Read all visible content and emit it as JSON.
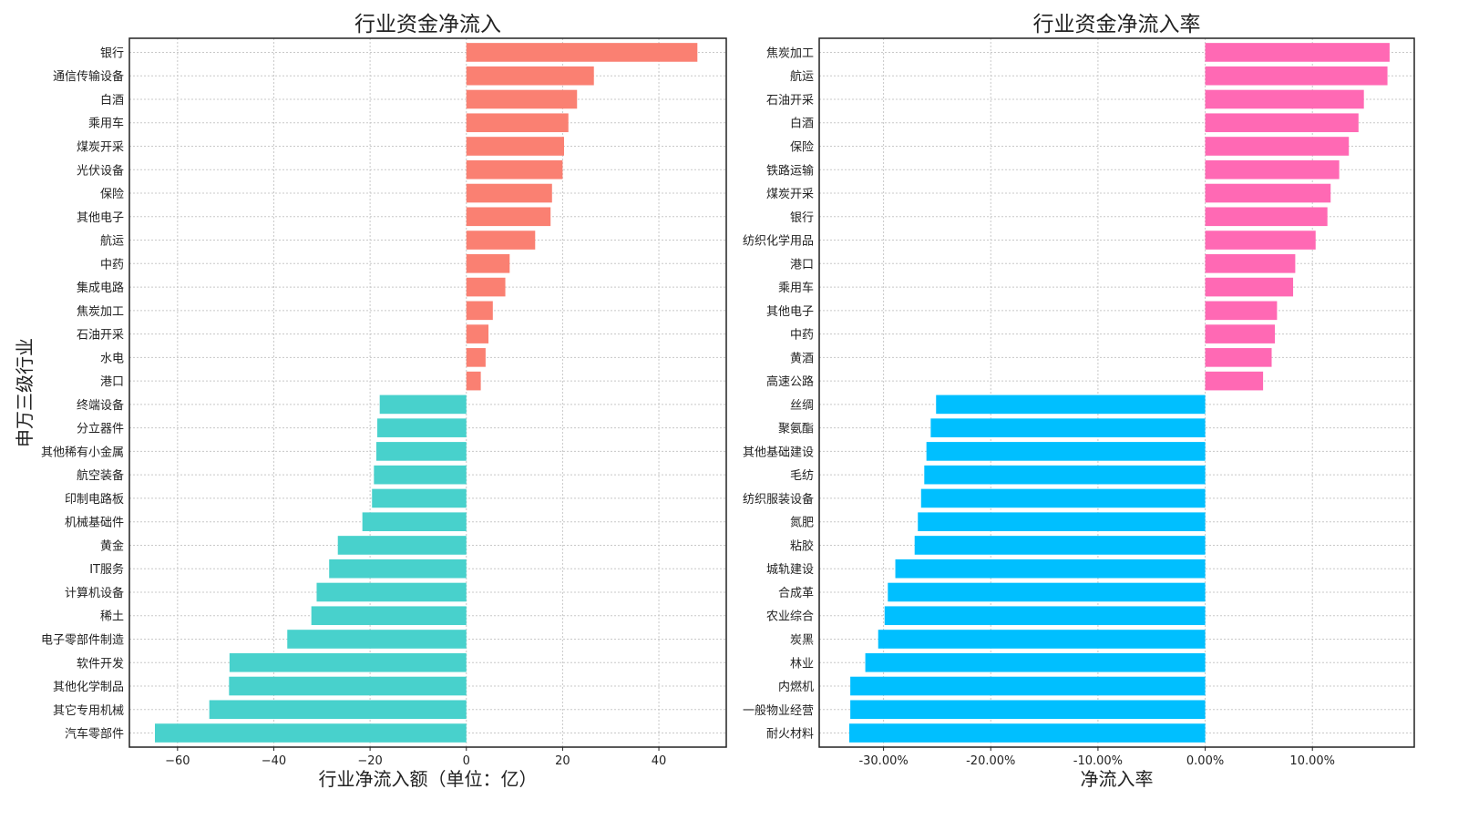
{
  "chart_data": [
    {
      "type": "bar",
      "orientation": "horizontal",
      "title": "行业资金净流入",
      "xlabel": "行业净流入额（单位：亿）",
      "ylabel": "申万三级行业",
      "xlim": [
        -70,
        54
      ],
      "xticks": [
        -60,
        -40,
        -20,
        0,
        20,
        40
      ],
      "xtick_labels": [
        "−60",
        "−40",
        "−20",
        "0",
        "20",
        "40"
      ],
      "grid": true,
      "positive_color": "#FA8072",
      "negative_color": "#48D1CC",
      "categories": [
        "银行",
        "通信传输设备",
        "白酒",
        "乘用车",
        "煤炭开采",
        "光伏设备",
        "保险",
        "其他电子",
        "航运",
        "中药",
        "集成电路",
        "焦炭加工",
        "石油开采",
        "水电",
        "港口",
        "终端设备",
        "分立器件",
        "其他稀有小金属",
        "航空装备",
        "印制电路板",
        "机械基础件",
        "黄金",
        "IT服务",
        "计算机设备",
        "稀土",
        "电子零部件制造",
        "软件开发",
        "其他化学制品",
        "其它专用机械",
        "汽车零部件"
      ],
      "values": [
        48,
        26.5,
        23,
        21.2,
        20.3,
        20,
        17.8,
        17.5,
        14.3,
        9,
        8.1,
        5.5,
        4.6,
        4,
        3,
        -18,
        -18.5,
        -18.7,
        -19.2,
        -19.6,
        -21.6,
        -26.7,
        -28.5,
        -31.1,
        -32.2,
        -37.2,
        -49.2,
        -49.3,
        -53.4,
        -64.7
      ]
    },
    {
      "type": "bar",
      "orientation": "horizontal",
      "title": "行业资金净流入率",
      "xlabel": "净流入率",
      "ylabel": "",
      "xlim": [
        -0.36,
        0.195
      ],
      "xticks": [
        -0.3,
        -0.2,
        -0.1,
        0,
        0.1
      ],
      "xtick_labels": [
        "-30.00%",
        "-20.00%",
        "-10.00%",
        "0.00%",
        "10.00%"
      ],
      "grid": true,
      "positive_color": "#FF69B4",
      "negative_color": "#00BFFF",
      "categories": [
        "焦炭加工",
        "航运",
        "石油开采",
        "白酒",
        "保险",
        "铁路运输",
        "煤炭开采",
        "银行",
        "纺织化学用品",
        "港口",
        "乘用车",
        "其他电子",
        "中药",
        "黄酒",
        "高速公路",
        "丝绸",
        "聚氨酯",
        "其他基础建设",
        "毛纺",
        "纺织服装设备",
        "氮肥",
        "粘胶",
        "城轨建设",
        "合成革",
        "农业综合",
        "炭黑",
        "林业",
        "内燃机",
        "一般物业经营",
        "耐火材料"
      ],
      "values": [
        0.172,
        0.17,
        0.148,
        0.143,
        0.134,
        0.125,
        0.117,
        0.114,
        0.103,
        0.084,
        0.082,
        0.067,
        0.065,
        0.062,
        0.054,
        -0.251,
        -0.256,
        -0.26,
        -0.262,
        -0.265,
        -0.268,
        -0.271,
        -0.289,
        -0.296,
        -0.299,
        -0.305,
        -0.317,
        -0.331,
        -0.331,
        -0.332
      ]
    }
  ]
}
